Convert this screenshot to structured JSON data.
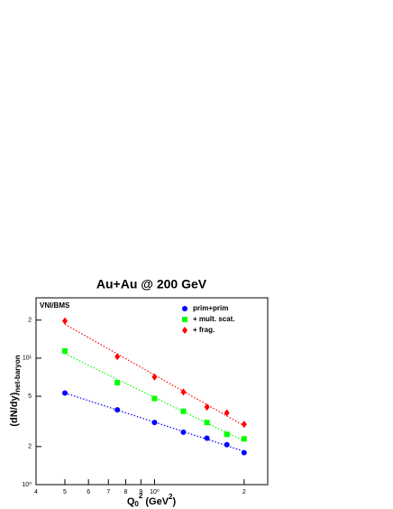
{
  "chart_data": {
    "type": "scatter",
    "title": "Au+Au @ 200 GeV",
    "annotation": "VNI/BMS",
    "xlabel": {
      "base": "Q",
      "sub": "0",
      "sup": "2",
      "unit": " (GeV",
      "unit_sup": "2",
      "close": ")"
    },
    "ylabel": {
      "base": "(dN/dy)",
      "sub": "net-baryon"
    },
    "x": [
      0.5,
      0.75,
      1.0,
      1.25,
      1.5,
      1.75,
      2.0
    ],
    "series": [
      {
        "name": "prim+prim",
        "color": "#0000ff",
        "marker": "circle",
        "values": [
          5.3,
          3.9,
          3.1,
          2.6,
          2.33,
          2.07,
          1.79
        ]
      },
      {
        "name": "+ mult. scat.",
        "color": "#00ff00",
        "marker": "square",
        "values": [
          11.4,
          6.4,
          4.8,
          3.8,
          3.1,
          2.5,
          2.3
        ]
      },
      {
        "name": "+ frag.",
        "color": "#ff0000",
        "marker": "diamond",
        "values": [
          19.7,
          10.3,
          7.1,
          5.4,
          4.1,
          3.7,
          3.0
        ]
      }
    ],
    "xscale": "log",
    "yscale": "log",
    "fit_lines": true,
    "legend": "top-right",
    "xlim": [
      0.4,
      2.4
    ],
    "ylim": [
      1,
      30
    ],
    "xticks": [
      {
        "value": 0.4,
        "label": "4"
      },
      {
        "value": 0.5,
        "label": "5"
      },
      {
        "value": 0.6,
        "label": "6"
      },
      {
        "value": 0.7,
        "label": "7"
      },
      {
        "value": 0.8,
        "label": "8"
      },
      {
        "value": 0.9,
        "label": "9"
      },
      {
        "value": 1,
        "label": "10⁰"
      },
      {
        "value": 2,
        "label": "2"
      }
    ],
    "yticks": [
      {
        "value": 1,
        "label": "10⁰"
      },
      2,
      5,
      {
        "value": 10,
        "label": "10¹"
      },
      {
        "value": 20,
        "label": "2"
      }
    ]
  }
}
